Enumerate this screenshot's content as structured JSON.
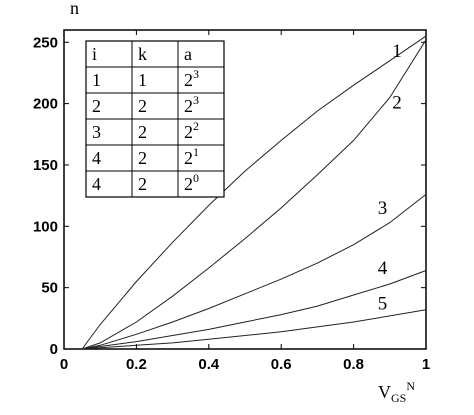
{
  "chart_data": {
    "type": "line",
    "xlabel": "V",
    "xlabel_sub": "GS",
    "xlabel_sup": "N",
    "ylabel": "n",
    "xlim": [
      0,
      1
    ],
    "ylim": [
      0,
      260
    ],
    "x_ticks": [
      0,
      0.2,
      0.4,
      0.6,
      0.8,
      1
    ],
    "x_tick_labels": [
      "0",
      "0.2",
      "0.4",
      "0.6",
      "0.8",
      "1"
    ],
    "y_ticks": [
      0,
      50,
      100,
      150,
      200,
      250
    ],
    "y_tick_labels": [
      "0",
      "50",
      "100",
      "150",
      "200",
      "250"
    ],
    "grid": false,
    "series": [
      {
        "label": "1",
        "x": [
          0.05,
          0.1,
          0.2,
          0.3,
          0.4,
          0.5,
          0.6,
          0.7,
          0.8,
          0.9,
          1.0
        ],
        "values": [
          0,
          20,
          55,
          87,
          117,
          145,
          170,
          194,
          215,
          235,
          255
        ]
      },
      {
        "label": "2",
        "x": [
          0.05,
          0.1,
          0.2,
          0.3,
          0.4,
          0.5,
          0.6,
          0.7,
          0.8,
          0.9,
          1.0
        ],
        "values": [
          0,
          5,
          22,
          43,
          66,
          90,
          115,
          142,
          170,
          205,
          252
        ]
      },
      {
        "label": "3",
        "x": [
          0.05,
          0.1,
          0.2,
          0.3,
          0.4,
          0.5,
          0.6,
          0.7,
          0.8,
          0.9,
          1.0
        ],
        "values": [
          0,
          3,
          12,
          22,
          33,
          45,
          57,
          70,
          85,
          103,
          126
        ]
      },
      {
        "label": "4",
        "x": [
          0.05,
          0.1,
          0.2,
          0.3,
          0.4,
          0.5,
          0.6,
          0.7,
          0.8,
          0.9,
          1.0
        ],
        "values": [
          0,
          2,
          6,
          11,
          16,
          22,
          28,
          35,
          44,
          53,
          64
        ]
      },
      {
        "label": "5",
        "x": [
          0.05,
          0.1,
          0.2,
          0.3,
          0.4,
          0.5,
          0.6,
          0.7,
          0.8,
          0.9,
          1.0
        ],
        "values": [
          0,
          1,
          3,
          5,
          8,
          11,
          14,
          18,
          22,
          27,
          32
        ]
      }
    ],
    "curve_labels": [
      {
        "text": "1",
        "x": 0.92,
        "y": 238
      },
      {
        "text": "2",
        "x": 0.92,
        "y": 196
      },
      {
        "text": "3",
        "x": 0.88,
        "y": 110
      },
      {
        "text": "4",
        "x": 0.88,
        "y": 61
      },
      {
        "text": "5",
        "x": 0.88,
        "y": 32
      }
    ],
    "table": {
      "headers": [
        "i",
        "k",
        "a"
      ],
      "rows": [
        {
          "i": "1",
          "k": "1",
          "a_base": "2",
          "a_exp": "3"
        },
        {
          "i": "2",
          "k": "2",
          "a_base": "2",
          "a_exp": "3"
        },
        {
          "i": "3",
          "k": "2",
          "a_base": "2",
          "a_exp": "2"
        },
        {
          "i": "4",
          "k": "2",
          "a_base": "2",
          "a_exp": "1"
        },
        {
          "i": "4",
          "k": "2",
          "a_base": "2",
          "a_exp": "0"
        }
      ]
    }
  }
}
